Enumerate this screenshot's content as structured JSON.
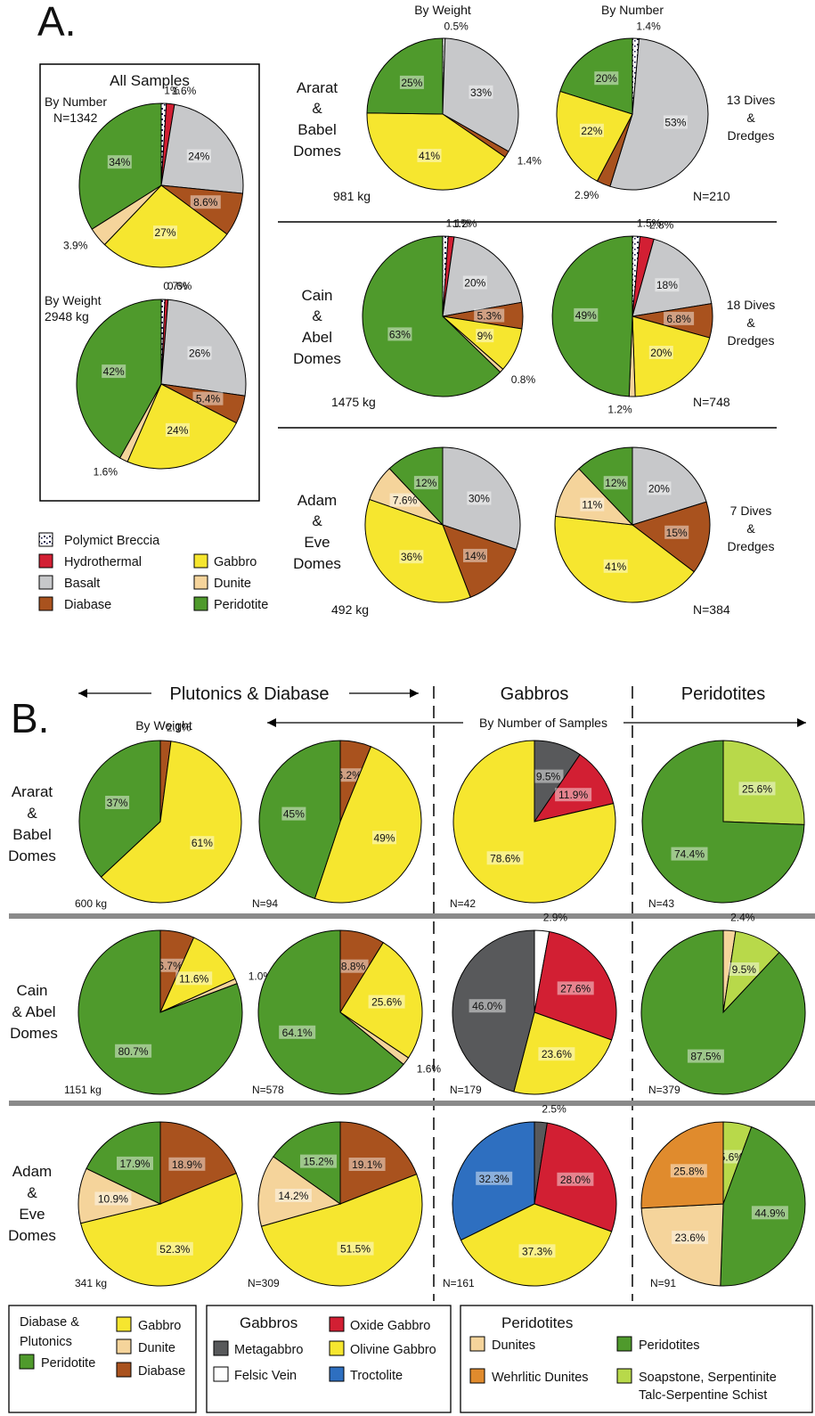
{
  "panel_a": {
    "letter": "A.",
    "all_samples_title": "All Samples",
    "all_by_number_label": "By Number",
    "all_by_number_n": "N=1342",
    "all_by_weight_label": "By Weight",
    "all_by_weight_kg": "2948 kg",
    "col_by_weight": "By Weight",
    "col_by_number": "By Number",
    "rows": [
      {
        "name": [
          "Ararat",
          "&",
          "Babel",
          "Domes"
        ],
        "weight": "981 kg",
        "dives": [
          "13 Dives",
          "&",
          "Dredges"
        ],
        "n": "N=210"
      },
      {
        "name": [
          "Cain",
          "&",
          "Abel",
          "Domes"
        ],
        "weight": "1475 kg",
        "dives": [
          "18 Dives",
          "&",
          "Dredges"
        ],
        "n": "N=748"
      },
      {
        "name": [
          "Adam",
          "&",
          "Eve",
          "Domes"
        ],
        "weight": "492 kg",
        "dives": [
          "7 Dives",
          "&",
          "Dredges"
        ],
        "n": "N=384"
      }
    ],
    "legend": [
      {
        "label": "Polymict Breccia",
        "color": "#ffffff",
        "pattern": "breccia"
      },
      {
        "label": "Hydrothermal",
        "color": "#d21f33"
      },
      {
        "label": "Basalt",
        "color": "#c7c8ca"
      },
      {
        "label": "Diabase",
        "color": "#a9521e"
      },
      {
        "label": "Gabbro",
        "color": "#f6e62f"
      },
      {
        "label": "Dunite",
        "color": "#f5d49b"
      },
      {
        "label": "Peridotite",
        "color": "#4f9a2c"
      }
    ]
  },
  "panel_b": {
    "letter": "B.",
    "header_plutonics": "Plutonics & Diabase",
    "header_gabbros": "Gabbros",
    "header_peridotites": "Peridotites",
    "header_by_weight": "By Weight",
    "header_by_number": "By Number of Samples",
    "rows": [
      {
        "name": [
          "Ararat",
          "&",
          "Babel",
          "Domes"
        ],
        "weight": "600 kg",
        "n_plut": "N=94",
        "n_gab": "N=42",
        "n_per": "N=43"
      },
      {
        "name": [
          "Cain",
          "& Abel",
          "Domes"
        ],
        "weight": "1151 kg",
        "n_plut": "N=578",
        "n_gab": "N=179",
        "n_per": "N=379"
      },
      {
        "name": [
          "Adam",
          "&",
          "Eve",
          "Domes"
        ],
        "weight": "341 kg",
        "n_plut": "N=309",
        "n_gab": "N=161",
        "n_per": "N=91"
      }
    ],
    "legend_groups": [
      {
        "title": [
          "Diabase &",
          "Plutonics"
        ],
        "items": [
          {
            "label": "Gabbro",
            "color": "#f6e62f"
          },
          {
            "label": "Dunite",
            "color": "#f5d49b"
          },
          {
            "label": "Diabase",
            "color": "#a9521e"
          },
          {
            "label": "Peridotite",
            "color": "#4f9a2c"
          }
        ]
      },
      {
        "title": [
          "Gabbros"
        ],
        "items": [
          {
            "label": "Metagabbro",
            "color": "#58595b"
          },
          {
            "label": "Felsic Vein",
            "color": "#ffffff"
          },
          {
            "label": "Oxide Gabbro",
            "color": "#d21f33"
          },
          {
            "label": "Olivine Gabbro",
            "color": "#f6e62f"
          },
          {
            "label": "Troctolite",
            "color": "#2e6fc0"
          }
        ]
      },
      {
        "title": [
          "Peridotites"
        ],
        "items": [
          {
            "label": "Dunites",
            "color": "#f5d49b"
          },
          {
            "label": "Wehrlitic Dunites",
            "color": "#e08b2d"
          },
          {
            "label": "Peridotites",
            "color": "#4f9a2c"
          },
          {
            "label": "Soapstone, Serpentinite",
            "label2": "Talc-Serpentine Schist",
            "color": "#b8d94a"
          }
        ]
      }
    ]
  },
  "chart_data": [
    {
      "type": "pie",
      "panel": "A",
      "group": "All Samples",
      "measure": "By Number",
      "total": "N=1342",
      "slices": [
        {
          "name": "Polymict Breccia",
          "value": 1,
          "label": "1%"
        },
        {
          "name": "Hydrothermal",
          "value": 1.6,
          "label": "1.6%"
        },
        {
          "name": "Basalt",
          "value": 24,
          "label": "24%"
        },
        {
          "name": "Diabase",
          "value": 8.6,
          "label": "8.6%"
        },
        {
          "name": "Gabbro",
          "value": 27,
          "label": "27%"
        },
        {
          "name": "Dunite",
          "value": 3.9,
          "label": "3.9%"
        },
        {
          "name": "Peridotite",
          "value": 34,
          "label": "34%"
        }
      ]
    },
    {
      "type": "pie",
      "panel": "A",
      "group": "All Samples",
      "measure": "By Weight",
      "total": "2948 kg",
      "slices": [
        {
          "name": "Polymict Breccia",
          "value": 0.7,
          "label": "0.7%"
        },
        {
          "name": "Hydrothermal",
          "value": 0.6,
          "label": "0.6%"
        },
        {
          "name": "Basalt",
          "value": 26,
          "label": "26%"
        },
        {
          "name": "Diabase",
          "value": 5.4,
          "label": "5.4%"
        },
        {
          "name": "Gabbro",
          "value": 24,
          "label": "24%"
        },
        {
          "name": "Dunite",
          "value": 1.6,
          "label": "1.6%"
        },
        {
          "name": "Peridotite",
          "value": 42,
          "label": "42%"
        }
      ]
    },
    {
      "type": "pie",
      "panel": "A",
      "group": "Ararat & Babel Domes",
      "measure": "By Weight",
      "total": "981 kg",
      "slices": [
        {
          "name": "Polymict Breccia",
          "value": 0.5,
          "label": "0.5%"
        },
        {
          "name": "Basalt",
          "value": 33,
          "label": "33%"
        },
        {
          "name": "Diabase",
          "value": 1.4,
          "label": "1.4%"
        },
        {
          "name": "Gabbro",
          "value": 41,
          "label": "41%"
        },
        {
          "name": "Peridotite",
          "value": 25,
          "label": "25%"
        }
      ]
    },
    {
      "type": "pie",
      "panel": "A",
      "group": "Ararat & Babel Domes",
      "measure": "By Number",
      "total": "N=210",
      "slices": [
        {
          "name": "Polymict Breccia",
          "value": 1.4,
          "label": "1.4%"
        },
        {
          "name": "Basalt",
          "value": 53,
          "label": "53%"
        },
        {
          "name": "Diabase",
          "value": 2.9,
          "label": "2.9%"
        },
        {
          "name": "Gabbro",
          "value": 22,
          "label": "22%"
        },
        {
          "name": "Peridotite",
          "value": 20,
          "label": "20%"
        }
      ]
    },
    {
      "type": "pie",
      "panel": "A",
      "group": "Cain & Abel Domes",
      "measure": "By Weight",
      "total": "1475 kg",
      "slices": [
        {
          "name": "Polymict Breccia",
          "value": 1.1,
          "label": "1.1%"
        },
        {
          "name": "Hydrothermal",
          "value": 1.2,
          "label": "1.2%"
        },
        {
          "name": "Basalt",
          "value": 20,
          "label": "20%"
        },
        {
          "name": "Diabase",
          "value": 5.3,
          "label": "5.3%"
        },
        {
          "name": "Gabbro",
          "value": 9,
          "label": "9%"
        },
        {
          "name": "Dunite",
          "value": 0.8,
          "label": "0.8%"
        },
        {
          "name": "Peridotite",
          "value": 63,
          "label": "63%"
        }
      ]
    },
    {
      "type": "pie",
      "panel": "A",
      "group": "Cain & Abel Domes",
      "measure": "By Number",
      "total": "N=748",
      "slices": [
        {
          "name": "Polymict Breccia",
          "value": 1.5,
          "label": "1.5%"
        },
        {
          "name": "Hydrothermal",
          "value": 2.8,
          "label": "2.8%"
        },
        {
          "name": "Basalt",
          "value": 18,
          "label": "18%"
        },
        {
          "name": "Diabase",
          "value": 6.8,
          "label": "6.8%"
        },
        {
          "name": "Gabbro",
          "value": 20,
          "label": "20%"
        },
        {
          "name": "Dunite",
          "value": 1.2,
          "label": "1.2%"
        },
        {
          "name": "Peridotite",
          "value": 49,
          "label": "49%"
        }
      ]
    },
    {
      "type": "pie",
      "panel": "A",
      "group": "Adam & Eve Domes",
      "measure": "By Weight",
      "total": "492 kg",
      "slices": [
        {
          "name": "Basalt",
          "value": 30,
          "label": "30%"
        },
        {
          "name": "Diabase",
          "value": 14,
          "label": "14%"
        },
        {
          "name": "Gabbro",
          "value": 36,
          "label": "36%"
        },
        {
          "name": "Dunite",
          "value": 7.6,
          "label": "7.6%"
        },
        {
          "name": "Peridotite",
          "value": 12,
          "label": "12%"
        }
      ]
    },
    {
      "type": "pie",
      "panel": "A",
      "group": "Adam & Eve Domes",
      "measure": "By Number",
      "total": "N=384",
      "slices": [
        {
          "name": "Basalt",
          "value": 20,
          "label": "20%"
        },
        {
          "name": "Diabase",
          "value": 15,
          "label": "15%"
        },
        {
          "name": "Gabbro",
          "value": 41,
          "label": "41%"
        },
        {
          "name": "Dunite",
          "value": 11,
          "label": "11%"
        },
        {
          "name": "Peridotite",
          "value": 12,
          "label": "12%"
        }
      ]
    },
    {
      "type": "pie",
      "panel": "B",
      "group": "Ararat & Babel Domes",
      "measure": "Plutonics & Diabase By Weight",
      "total": "600 kg",
      "slices": [
        {
          "name": "Diabase",
          "value": 2.1,
          "label": "2.1%"
        },
        {
          "name": "Gabbro",
          "value": 61,
          "label": "61%"
        },
        {
          "name": "Peridotite",
          "value": 37,
          "label": "37%"
        }
      ]
    },
    {
      "type": "pie",
      "panel": "B",
      "group": "Ararat & Babel Domes",
      "measure": "Plutonics & Diabase By Number of Samples",
      "total": "N=94",
      "slices": [
        {
          "name": "Diabase",
          "value": 6.2,
          "label": "6.2%"
        },
        {
          "name": "Gabbro",
          "value": 49,
          "label": "49%"
        },
        {
          "name": "Peridotite",
          "value": 45,
          "label": "45%"
        }
      ]
    },
    {
      "type": "pie",
      "panel": "B",
      "group": "Ararat & Babel Domes",
      "measure": "Gabbros By Number of Samples",
      "total": "N=42",
      "slices": [
        {
          "name": "Metagabbro",
          "value": 9.5,
          "label": "9.5%"
        },
        {
          "name": "Oxide Gabbro",
          "value": 11.9,
          "label": "11.9%"
        },
        {
          "name": "Olivine Gabbro",
          "value": 78.6,
          "label": "78.6%"
        }
      ]
    },
    {
      "type": "pie",
      "panel": "B",
      "group": "Ararat & Babel Domes",
      "measure": "Peridotites By Number of Samples",
      "total": "N=43",
      "slices": [
        {
          "name": "Soapstone, Serpentinite Talc-Serpentine Schist",
          "value": 25.6,
          "label": "25.6%"
        },
        {
          "name": "Peridotites",
          "value": 74.4,
          "label": "74.4%"
        }
      ]
    },
    {
      "type": "pie",
      "panel": "B",
      "group": "Cain & Abel Domes",
      "measure": "Plutonics & Diabase By Weight",
      "total": "1151 kg",
      "slices": [
        {
          "name": "Diabase",
          "value": 6.7,
          "label": "6.7%"
        },
        {
          "name": "Gabbro",
          "value": 11.6,
          "label": "11.6%"
        },
        {
          "name": "Dunite",
          "value": 1.0,
          "label": "1.0%"
        },
        {
          "name": "Peridotite",
          "value": 80.7,
          "label": "80.7%"
        }
      ]
    },
    {
      "type": "pie",
      "panel": "B",
      "group": "Cain & Abel Domes",
      "measure": "Plutonics & Diabase By Number of Samples",
      "total": "N=578",
      "slices": [
        {
          "name": "Diabase",
          "value": 8.8,
          "label": "8.8%"
        },
        {
          "name": "Gabbro",
          "value": 25.6,
          "label": "25.6%"
        },
        {
          "name": "Dunite",
          "value": 1.6,
          "label": "1.6%"
        },
        {
          "name": "Peridotite",
          "value": 64.1,
          "label": "64.1%"
        }
      ]
    },
    {
      "type": "pie",
      "panel": "B",
      "group": "Cain & Abel Domes",
      "measure": "Gabbros By Number of Samples",
      "total": "N=179",
      "slices": [
        {
          "name": "Felsic Vein",
          "value": 2.9,
          "label": "2.9%"
        },
        {
          "name": "Oxide Gabbro",
          "value": 27.6,
          "label": "27.6%"
        },
        {
          "name": "Olivine Gabbro",
          "value": 23.6,
          "label": "23.6%"
        },
        {
          "name": "Metagabbro",
          "value": 46.0,
          "label": "46.0%"
        }
      ]
    },
    {
      "type": "pie",
      "panel": "B",
      "group": "Cain & Abel Domes",
      "measure": "Peridotites By Number of Samples",
      "total": "N=379",
      "slices": [
        {
          "name": "Dunites",
          "value": 2.4,
          "label": "2.4%"
        },
        {
          "name": "Soapstone, Serpentinite Talc-Serpentine Schist",
          "value": 9.5,
          "label": "9.5%"
        },
        {
          "name": "Peridotites",
          "value": 87.5,
          "label": "87.5%"
        }
      ]
    },
    {
      "type": "pie",
      "panel": "B",
      "group": "Adam & Eve Domes",
      "measure": "Plutonics & Diabase By Weight",
      "total": "341 kg",
      "slices": [
        {
          "name": "Diabase",
          "value": 18.9,
          "label": "18.9%"
        },
        {
          "name": "Gabbro",
          "value": 52.3,
          "label": "52.3%"
        },
        {
          "name": "Dunite",
          "value": 10.9,
          "label": "10.9%"
        },
        {
          "name": "Peridotite",
          "value": 17.9,
          "label": "17.9%"
        }
      ]
    },
    {
      "type": "pie",
      "panel": "B",
      "group": "Adam & Eve Domes",
      "measure": "Plutonics & Diabase By Number of Samples",
      "total": "N=309",
      "slices": [
        {
          "name": "Diabase",
          "value": 19.1,
          "label": "19.1%"
        },
        {
          "name": "Gabbro",
          "value": 51.5,
          "label": "51.5%"
        },
        {
          "name": "Dunite",
          "value": 14.2,
          "label": "14.2%"
        },
        {
          "name": "Peridotite",
          "value": 15.2,
          "label": "15.2%"
        }
      ]
    },
    {
      "type": "pie",
      "panel": "B",
      "group": "Adam & Eve Domes",
      "measure": "Gabbros By Number of Samples",
      "total": "N=161",
      "slices": [
        {
          "name": "Metagabbro",
          "value": 2.5,
          "label": "2.5%"
        },
        {
          "name": "Oxide Gabbro",
          "value": 28.0,
          "label": "28.0%"
        },
        {
          "name": "Olivine Gabbro",
          "value": 37.3,
          "label": "37.3%"
        },
        {
          "name": "Troctolite",
          "value": 32.3,
          "label": "32.3%"
        }
      ]
    },
    {
      "type": "pie",
      "panel": "B",
      "group": "Adam & Eve Domes",
      "measure": "Peridotites By Number of Samples",
      "total": "N=91",
      "slices": [
        {
          "name": "Soapstone, Serpentinite Talc-Serpentine Schist",
          "value": 5.6,
          "label": "5.6%"
        },
        {
          "name": "Peridotites",
          "value": 44.9,
          "label": "44.9%"
        },
        {
          "name": "Dunites",
          "value": 23.6,
          "label": "23.6%"
        },
        {
          "name": "Wehrlitic Dunites",
          "value": 25.8,
          "label": "25.8%"
        }
      ]
    }
  ]
}
